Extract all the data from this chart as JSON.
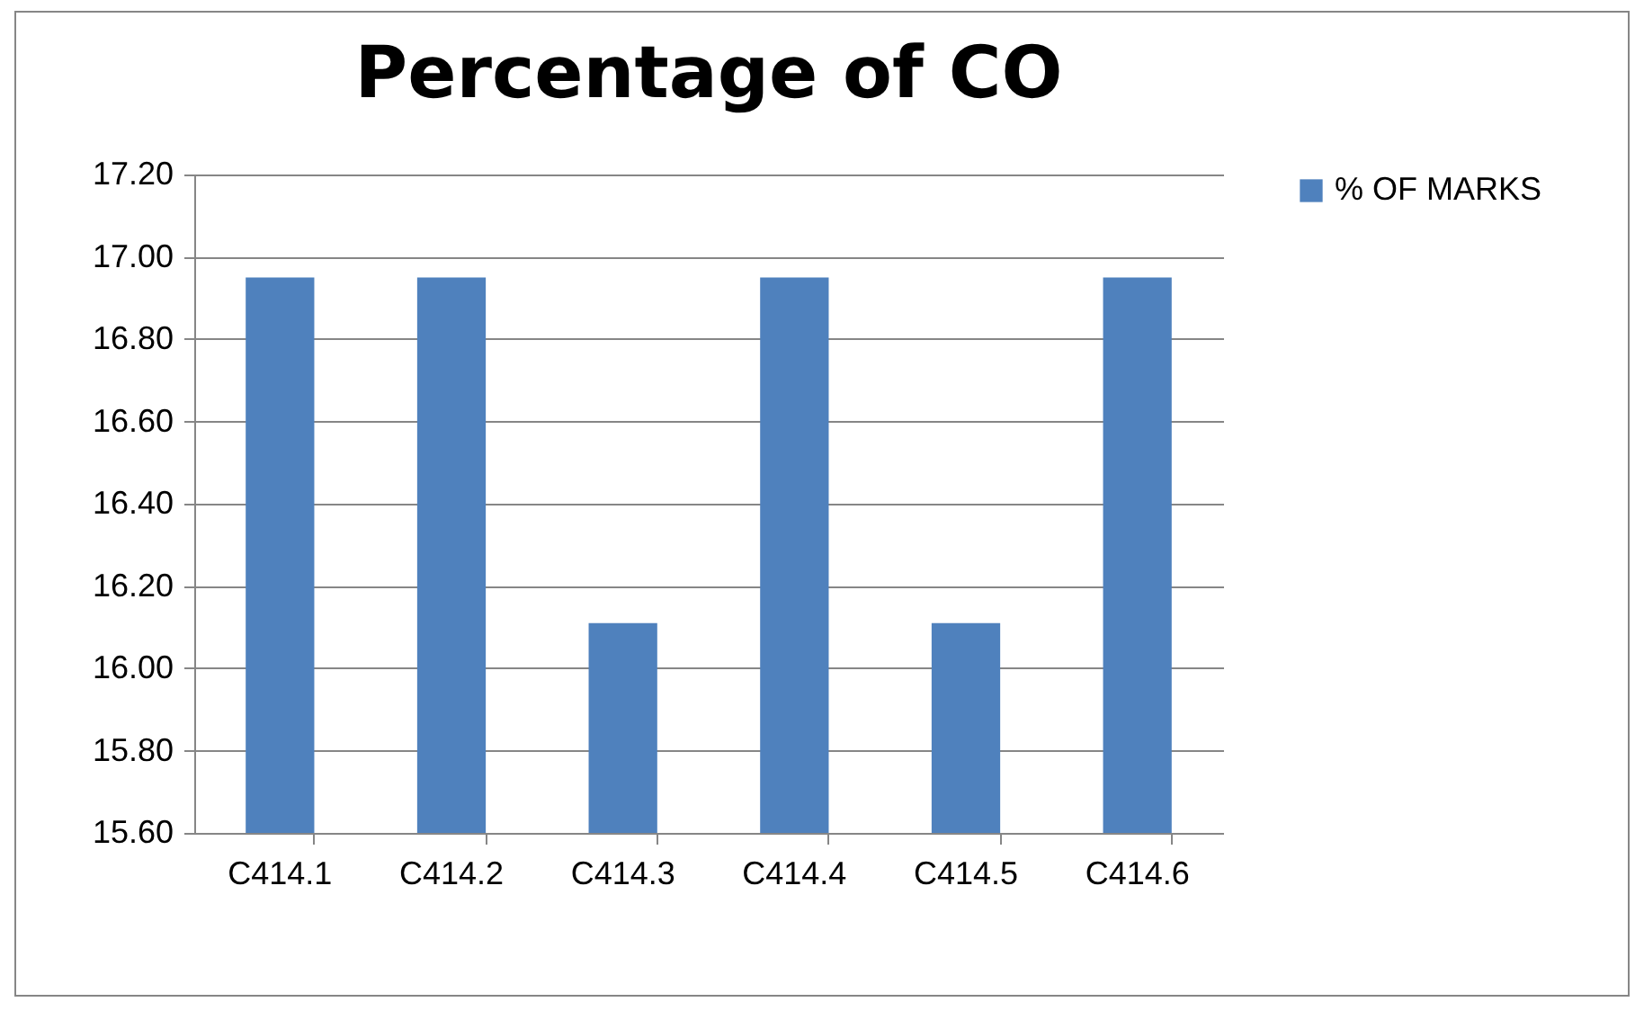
{
  "chart_data": {
    "type": "bar",
    "title": "Percentage of CO",
    "categories": [
      "C414.1",
      "C414.2",
      "C414.3",
      "C414.4",
      "C414.5",
      "C414.6"
    ],
    "series": [
      {
        "name": "% OF MARKS",
        "color": "#4f81bd",
        "values": [
          16.95,
          16.95,
          16.11,
          16.95,
          16.11,
          16.95
        ]
      }
    ],
    "ylim": [
      15.6,
      17.2
    ],
    "yticks": [
      {
        "value": 15.6,
        "label": "15.60"
      },
      {
        "value": 15.8,
        "label": "15.80"
      },
      {
        "value": 16.0,
        "label": "16.00"
      },
      {
        "value": 16.2,
        "label": "16.20"
      },
      {
        "value": 16.4,
        "label": "16.40"
      },
      {
        "value": 16.6,
        "label": "16.60"
      },
      {
        "value": 16.8,
        "label": "16.80"
      },
      {
        "value": 17.0,
        "label": "17.00"
      },
      {
        "value": 17.2,
        "label": "17.20"
      }
    ],
    "grid": "y",
    "legend": "right"
  }
}
